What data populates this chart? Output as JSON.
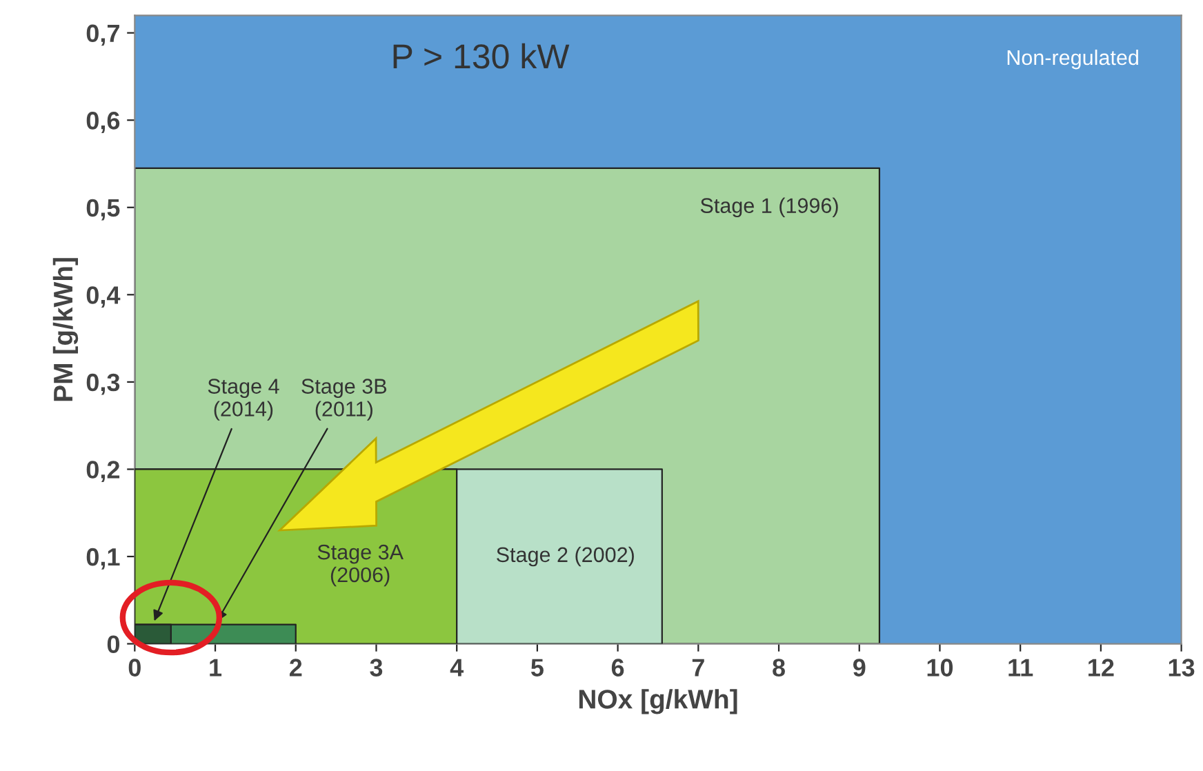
{
  "chart_data": {
    "type": "area",
    "xlabel": "NOx [g/kWh]",
    "ylabel": "PM [g/kWh]",
    "annotations": [
      "P > 130 kW",
      "Non-regulated"
    ],
    "series": [
      {
        "name": "Stage 1 (1996)",
        "color": "#a8d5a0",
        "x": [
          0,
          9.25
        ],
        "values": [
          0.545,
          0.545
        ]
      },
      {
        "name": "Stage 2 (2002)",
        "color": "#b8e0c8",
        "x": [
          0,
          6.55
        ],
        "values": [
          0.2,
          0.2
        ]
      },
      {
        "name": "Stage 3A (2006)",
        "color": "#8cc63f",
        "x": [
          0,
          4
        ],
        "values": [
          0.2,
          0.2
        ]
      },
      {
        "name": "Stage 3B (2011)",
        "color": "#3d8c55",
        "x": [
          0,
          2
        ],
        "values": [
          0.022,
          0.022
        ]
      },
      {
        "name": "Stage 4 (2014)",
        "color": "#2a5a38",
        "x": [
          0,
          0.45
        ],
        "values": [
          0.022,
          0.022
        ]
      }
    ],
    "xlim": [
      0,
      13
    ],
    "ylim": [
      0,
      0.72
    ],
    "xticks": [
      0,
      1,
      2,
      3,
      4,
      5,
      6,
      7,
      8,
      9,
      10,
      11,
      12,
      13
    ],
    "yticks": [
      0,
      {
        "value": 0.1,
        "label": "0,1"
      },
      {
        "value": 0.2,
        "label": "0,2"
      },
      {
        "value": 0.3,
        "label": "0,3"
      },
      {
        "value": 0.4,
        "label": "0,4"
      },
      {
        "value": 0.5,
        "label": "0,5"
      },
      {
        "value": 0.6,
        "label": "0,6"
      },
      {
        "value": 0.7,
        "label": "0,7"
      }
    ],
    "legend": false
  }
}
